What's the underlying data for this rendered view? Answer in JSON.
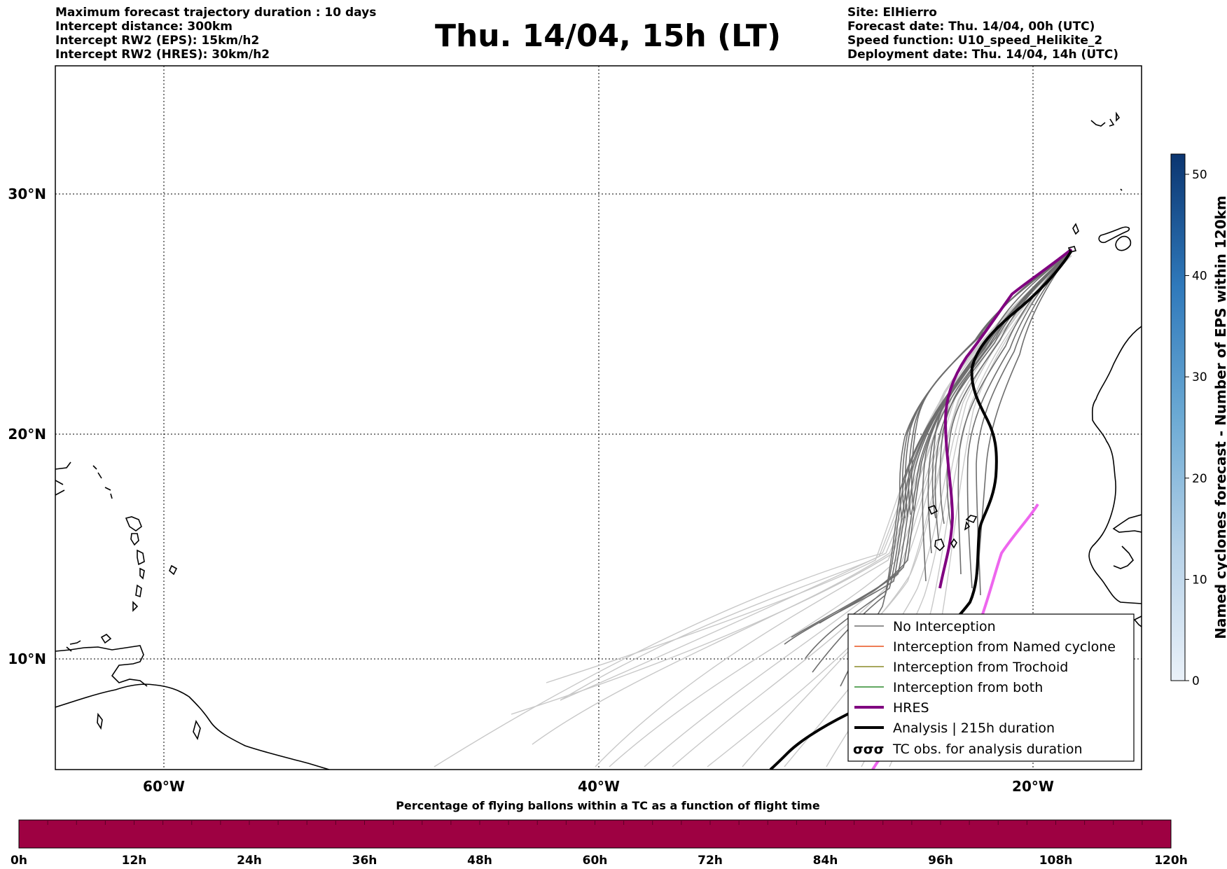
{
  "header": {
    "left_lines": [
      "Maximum forecast trajectory duration : 10 days",
      "Intercept distance: 300km",
      "Intercept RW2 (EPS):  15km/h2",
      "Intercept RW2 (HRES): 30km/h2"
    ],
    "title": "Thu. 14/04, 15h (LT)",
    "right_lines": [
      "Site: ElHierro",
      "Forecast date: Thu. 14/04, 00h (UTC)",
      "Speed function: U10_speed_Helikite_2",
      "Deployment date: Thu. 14/04, 14h (UTC)"
    ]
  },
  "map": {
    "lon_ticks": [
      "60°W",
      "40°W",
      "20°W"
    ],
    "lat_ticks": [
      "30°N",
      "20°N",
      "10°N"
    ],
    "colors": {
      "no_interception": "#6e6e6e",
      "named_cyclone": "#e8521e",
      "trochoid": "#8c8c28",
      "both": "#2e8b2e",
      "hres": "#800080",
      "hres_late": "#ee66ee",
      "analysis": "#000000",
      "coast": "#000000"
    }
  },
  "legend": {
    "items": [
      {
        "label": "No Interception",
        "style": "no_interception"
      },
      {
        "label": "Interception from Named cyclone",
        "style": "named_cyclone"
      },
      {
        "label": "Interception from Trochoid",
        "style": "trochoid"
      },
      {
        "label": "Interception from both",
        "style": "both"
      },
      {
        "label": "HRES",
        "style": "hres"
      },
      {
        "label": "Analysis | 215h duration",
        "style": "analysis"
      },
      {
        "label": "TC obs. for analysis duration",
        "style": "tc_obs"
      }
    ]
  },
  "vertical_colorbar": {
    "label": "Named cyclones forecast - Number of EPS within 120km",
    "ticks": [
      "50",
      "40",
      "30",
      "20",
      "10",
      "0"
    ],
    "max": 52,
    "color_low": "#e6eef8",
    "color_high": "#0d3a7a"
  },
  "bottom_colorbar": {
    "label": "Percentage of flying ballons within a TC as a function of flight time",
    "ticks": [
      "0h",
      "12h",
      "24h",
      "36h",
      "48h",
      "60h",
      "72h",
      "84h",
      "96h",
      "108h",
      "120h"
    ],
    "fill_color": "#9e0142"
  }
}
